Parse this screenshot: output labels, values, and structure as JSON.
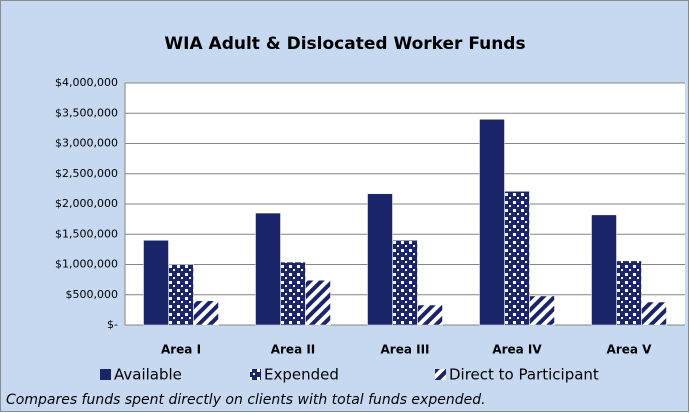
{
  "chart_data": {
    "type": "bar",
    "title": "WIA Adult & Dislocated Worker Funds",
    "caption": "Compares funds spent directly on clients with total funds expended.",
    "categories": [
      "Area I",
      "Area II",
      "Area III",
      "Area IV",
      "Area V"
    ],
    "series": [
      {
        "name": "Available",
        "color": "#1a2569",
        "pattern": "solid",
        "values": [
          1400000,
          1850000,
          2170000,
          3400000,
          1820000
        ]
      },
      {
        "name": "Expended",
        "color": "#1a2569",
        "pattern": "dots",
        "values": [
          1000000,
          1040000,
          1400000,
          2210000,
          1060000
        ]
      },
      {
        "name": "Direct to Participant",
        "color": "#1a2569",
        "pattern": "stripes",
        "values": [
          400000,
          740000,
          330000,
          480000,
          380000
        ]
      }
    ],
    "ylim": [
      0,
      4000000
    ],
    "yticks": [
      {
        "value": 0,
        "label": "$-"
      },
      {
        "value": 500000,
        "label": "$500,000"
      },
      {
        "value": 1000000,
        "label": "$1,000,000"
      },
      {
        "value": 1500000,
        "label": "$1,500,000"
      },
      {
        "value": 2000000,
        "label": "$2,000,000"
      },
      {
        "value": 2500000,
        "label": "$2,500,000"
      },
      {
        "value": 3000000,
        "label": "$3,000,000"
      },
      {
        "value": 3500000,
        "label": "$3,500,000"
      },
      {
        "value": 4000000,
        "label": "$4,000,000"
      }
    ],
    "grid": true,
    "legend": "bottom"
  }
}
